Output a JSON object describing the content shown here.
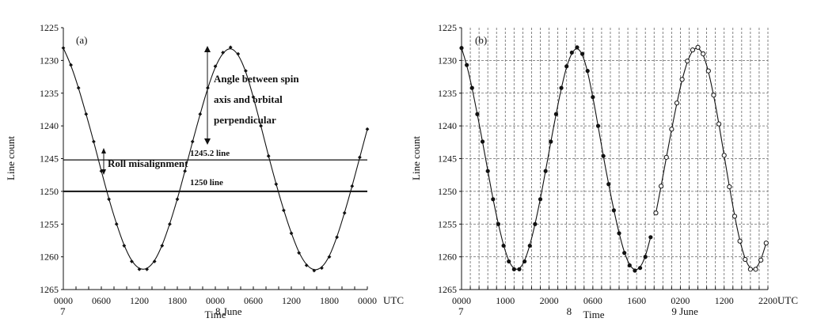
{
  "chart_data": [
    {
      "type": "line",
      "panel_label": "(a)",
      "xlabel": "Time",
      "ylabel": "Line count",
      "x_unit": "UTC",
      "y_reversed": true,
      "ylim": [
        1225,
        1265
      ],
      "yticks": [
        1225,
        1230,
        1235,
        1240,
        1245,
        1250,
        1255,
        1260,
        1265
      ],
      "x_range_hours": [
        0,
        48
      ],
      "xtick_labels": [
        "0000",
        "0600",
        "1200",
        "1800",
        "0000",
        "0600",
        "1200",
        "1800",
        "0000"
      ],
      "date_labels": [
        {
          "text": "7",
          "hour": 0
        },
        {
          "text": "8  June",
          "hour": 24
        }
      ],
      "grid": false,
      "series": [
        {
          "marker": "filled-diamond",
          "x": [
            0,
            1.2,
            2.4,
            3.6,
            4.8,
            6,
            7.2,
            8.4,
            9.6,
            10.8,
            12,
            13.2,
            14.4,
            15.6,
            16.8,
            18,
            19.2,
            20.4,
            21.6,
            22.8,
            24,
            25.2,
            26.4,
            27.6,
            28.8,
            30,
            31.2,
            32.4,
            33.6,
            34.8,
            36,
            37.2,
            38.4,
            39.6,
            40.8,
            42,
            43.2,
            44.4,
            45.6,
            46.8,
            48
          ],
          "y": [
            1228.1,
            1230.7,
            1234.2,
            1238.2,
            1242.4,
            1246.9,
            1251.2,
            1255.0,
            1258.3,
            1260.7,
            1261.9,
            1261.9,
            1260.7,
            1258.3,
            1255.0,
            1251.2,
            1246.9,
            1242.4,
            1238.2,
            1234.2,
            1230.9,
            1228.8,
            1228.0,
            1229.0,
            1231.6,
            1235.6,
            1240.0,
            1244.6,
            1248.9,
            1252.9,
            1256.4,
            1259.4,
            1261.3,
            1262.1,
            1261.7,
            1260.0,
            1257.0,
            1253.3,
            1249.2,
            1244.8,
            1240.5
          ]
        }
      ],
      "hlines": [
        {
          "y": 1245.2,
          "label": "1245.2 line"
        },
        {
          "y": 1250,
          "label": "1250 line"
        }
      ],
      "annotations": [
        {
          "text": "Angle between spin",
          "kind": "spin"
        },
        {
          "text": "axis and orbital",
          "kind": "spin"
        },
        {
          "text": "perpendicular",
          "kind": "spin"
        },
        {
          "text": "Roll misalignment",
          "kind": "roll"
        }
      ]
    },
    {
      "type": "line",
      "panel_label": "(b)",
      "xlabel": "Time",
      "ylabel": "Line count",
      "x_unit": "UTC",
      "y_reversed": true,
      "ylim": [
        1225,
        1265
      ],
      "yticks": [
        1225,
        1230,
        1235,
        1240,
        1245,
        1250,
        1255,
        1260,
        1265
      ],
      "x_range_hours": [
        0,
        70
      ],
      "xtick_labels": [
        "0000",
        "1000",
        "2000",
        "0600",
        "1600",
        "0200",
        "1200",
        "2200"
      ],
      "date_labels": [
        {
          "text": "7",
          "hour": 0
        },
        {
          "text": "8",
          "hour": 24
        },
        {
          "text": "9  June",
          "hour": 48
        }
      ],
      "grid": true,
      "series": [
        {
          "name": "",
          "marker": "filled-circle",
          "x": [
            0,
            1.2,
            2.4,
            3.6,
            4.8,
            6,
            7.2,
            8.4,
            9.6,
            10.8,
            12,
            13.2,
            14.4,
            15.6,
            16.8,
            18,
            19.2,
            20.4,
            21.6,
            22.8,
            24,
            25.2,
            26.4,
            27.6,
            28.8,
            30,
            31.2,
            32.4,
            33.6,
            34.8,
            36,
            37.2,
            38.4,
            39.6,
            40.8,
            42,
            43.2
          ],
          "y": [
            1228.1,
            1230.7,
            1234.2,
            1238.2,
            1242.4,
            1246.9,
            1251.2,
            1255.0,
            1258.3,
            1260.7,
            1261.9,
            1261.9,
            1260.7,
            1258.3,
            1255.0,
            1251.2,
            1246.9,
            1242.4,
            1238.2,
            1234.2,
            1230.9,
            1228.8,
            1228.0,
            1229.0,
            1231.6,
            1235.6,
            1240.0,
            1244.6,
            1248.9,
            1252.9,
            1256.4,
            1259.4,
            1261.3,
            1262.1,
            1261.7,
            1260.0,
            1257.0
          ]
        },
        {
          "name": "",
          "marker": "open-circle",
          "x": [
            44.4,
            45.6,
            46.8,
            48,
            49.2,
            50.4,
            51.6,
            52.8,
            54,
            55.2,
            56.4,
            57.6,
            58.8,
            60,
            61.2,
            62.4,
            63.6,
            64.8,
            66,
            67.2,
            68.4,
            69.6
          ],
          "y": [
            1253.3,
            1249.2,
            1244.8,
            1240.5,
            1236.5,
            1232.9,
            1230.1,
            1228.4,
            1228.0,
            1229.0,
            1231.6,
            1235.3,
            1239.7,
            1244.5,
            1249.3,
            1253.8,
            1257.6,
            1260.4,
            1261.9,
            1261.9,
            1260.5,
            1257.9
          ]
        }
      ]
    }
  ]
}
